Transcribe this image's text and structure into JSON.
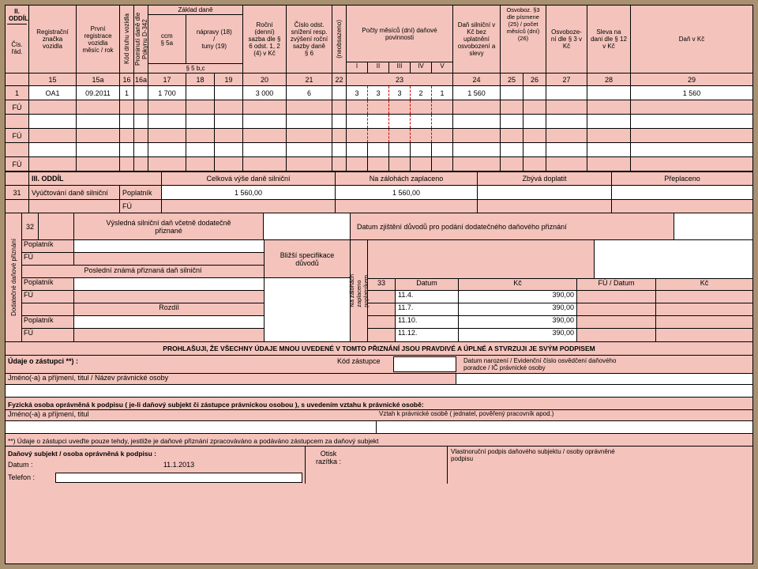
{
  "oddil2": {
    "title": "II. ODDÍL",
    "headers": {
      "cisrad": "Čís.\nřád.",
      "regznacka": "Registrační\nznačka\nvozidla",
      "prvnireg": "První\nregistrace\nvozidla\nměsíc / rok",
      "koddruhu": "Kód druhu vozidla",
      "prominuti": "Prominutí daně dle\nPokynu D-342",
      "zakladdane": "Základ daně",
      "ccm5a": "ccm\n§ 5a",
      "napravy": "nápravy (18)\n/\ntuny (19)",
      "s5bc": "§ 5 b,c",
      "rocni": "Roční\n(denní)\nsazba dle §\n6 odst. 1, 2\n(4) v Kč",
      "cisloodst": "Číslo odst.\nsnížení resp.\nzvýšení roční\nsazby daně\n§ 6",
      "neobsazeno": "(neobsazeno)",
      "pocty": "Počty měsíců (dní) daňové\npovinnosti",
      "roman": [
        "I",
        "II",
        "III",
        "IV",
        "V"
      ],
      "dansilnicni": "Daň silniční v\nKč bez\nuplatnění\nosvobození a\nslevy",
      "osvoboz": "Osvoboz. §3\ndle písmene\n(25) / počet\nměsíců (dní)\n(26)",
      "osvobozeni": "Osvoboze-\nní dle § 3 v\nKč",
      "sleva": "Sleva na\ndani dle § 12\nv Kč",
      "dankc": "Daň v Kč"
    },
    "colnums": [
      "15",
      "15a",
      "16",
      "16a",
      "17",
      "18",
      "19",
      "20",
      "21",
      "22",
      "23",
      "24",
      "25",
      "26",
      "27",
      "28",
      "29"
    ],
    "row1": {
      "n": "1",
      "rz": "OA1",
      "reg": "09.2011",
      "kod": "1",
      "ccm": "1 700",
      "rocni": "3 000",
      "cislo": "6",
      "m": [
        "3",
        "3",
        "3",
        "2",
        "1"
      ],
      "dan": "1 560",
      "dankc": "1 560"
    },
    "fu": "FÚ"
  },
  "oddil3": {
    "title": "III. ODDÍL",
    "celkova": "Celková výše daně silniční",
    "nazaloh": "Na zálohách zaplaceno",
    "zbyva": "Zbývá doplatit",
    "preplac": "Přeplaceno",
    "r31": "31",
    "vyuct": "Vyúčtování daně silniční",
    "poplat": "Poplatník",
    "fu": "FÚ",
    "v1": "1 560,00",
    "v2": "1 560,00"
  },
  "sec32": {
    "n": "32",
    "vysledna": "Výsledná silniční daň včetně dodatečně\npřiznané",
    "datumzj": "Datum zjištění důvodů pro podání dodatečného daňového přiznání",
    "poplatnik": "Poplatník",
    "fu": "FÚ",
    "posledni": "Poslední známá přiznaná daň silniční",
    "blizsi": "Bližší specifikace\ndůvodů",
    "rozdil": "Rozdíl",
    "nazaloh": "Na zálohách\nzaplaceno\npoplatníkem",
    "c33": "33",
    "datum": "Datum",
    "kc": "Kč",
    "fudatum": "FÚ / Datum",
    "rows": [
      {
        "d": "11.4.",
        "k": "390,00"
      },
      {
        "d": "11.7.",
        "k": "390,00"
      },
      {
        "d": "11.10.",
        "k": "390,00"
      },
      {
        "d": "11.12.",
        "k": "390,00"
      }
    ],
    "dodlbl": "Dodatečné daňové přiznání"
  },
  "decl": {
    "prohlas": "PROHLAŠUJI, ŽE VŠECHNY ÚDAJE MNOU UVEDENÉ V TOMTO PŘIZNÁNÍ JSOU PRAVDIVÉ A ÚPLNÉ A STVRZUJI JE SVÝM PODPISEM",
    "udajezast": "Údaje o zástupci **) :",
    "kodzast": "Kód zástupce",
    "datumnaroz": "Datum narození / Evidenční číslo osvědčení daňového\nporadce / IČ právnické osoby",
    "jmeno": "Jméno(-a) a příjmení, titul / Název právnické osoby",
    "fyzicka": "Fyzická osoba oprávněná k podpisu ( je-li daňový subjekt či zástupce právnickou osobou ), s uvedením vztahu k právnické osobě:",
    "jmeno2": "Jméno(-a) a příjmení, titul",
    "vztah": "Vztah k právnické osobě ( jednatel, pověřený pracovník apod.)",
    "poznamka": "**) Údaje o zástupci uveďte pouze tehdy, jestliže je daňové přiznání zpracováváno a podáváno zástupcem za daňový subjekt",
    "danovy": "Daňový subjekt / osoba oprávněná k podpisu :",
    "datum": "Datum :",
    "datumv": "11.1.2013",
    "telefon": "Telefon :",
    "otisk": "Otisk\nrazítka :",
    "vlastno": "Vlastnoruční podpis daňového subjektu / osoby oprávněné\npodpisu"
  },
  "colors": {
    "pink": "#f4c4bc",
    "white": "#ffffff",
    "border": "#000000"
  }
}
